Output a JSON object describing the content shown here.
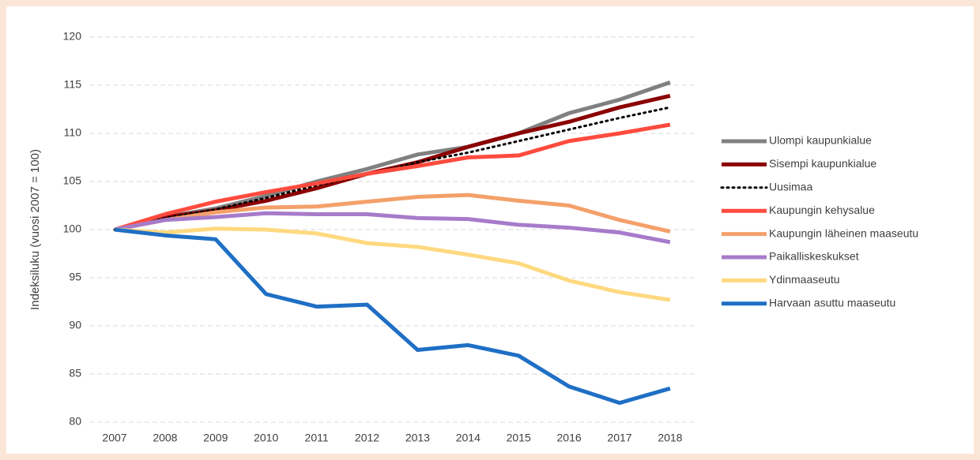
{
  "chart_data": {
    "type": "line",
    "y_label": "Indeksiluku (vuosi 2007 = 100)",
    "categories": [
      "2007",
      "2008",
      "2009",
      "2010",
      "2011",
      "2012",
      "2013",
      "2014",
      "2015",
      "2016",
      "2017",
      "2018"
    ],
    "ylim": [
      80,
      120
    ],
    "yticks": [
      80,
      85,
      90,
      95,
      100,
      105,
      110,
      115,
      120
    ],
    "grid": true,
    "legend": "right",
    "series": [
      {
        "name": "Ulompi kaupunkialue",
        "color": "#808080",
        "style": "solid",
        "values": [
          100,
          101.3,
          102.2,
          103.5,
          105,
          106.3,
          107.8,
          108.6,
          110,
          112.1,
          113.5,
          115.3
        ]
      },
      {
        "name": "Sisempi kaupunkialue",
        "color": "#8b0000",
        "style": "solid",
        "values": [
          100,
          101.3,
          102.0,
          103.0,
          104.3,
          105.8,
          107.0,
          108.6,
          110.0,
          111.2,
          112.7,
          113.9
        ]
      },
      {
        "name": "Uusimaa",
        "color": "#000000",
        "style": "dotted",
        "values": [
          100,
          101.2,
          102.1,
          103.3,
          104.6,
          105.7,
          107.0,
          108.0,
          109.2,
          110.4,
          111.6,
          112.7
        ]
      },
      {
        "name": "Kaupungin kehysalue",
        "color": "#ff4b3e",
        "style": "solid",
        "values": [
          100,
          101.6,
          102.9,
          103.9,
          104.8,
          105.8,
          106.6,
          107.5,
          107.7,
          109.2,
          110.0,
          110.9
        ]
      },
      {
        "name": "Kaupungin läheinen maaseutu",
        "color": "#f4a06a",
        "style": "solid",
        "values": [
          100,
          101.0,
          101.8,
          102.3,
          102.4,
          102.9,
          103.4,
          103.6,
          103.0,
          102.5,
          101.0,
          99.8
        ]
      },
      {
        "name": "Paikalliskeskukset",
        "color": "#a77bca",
        "style": "solid",
        "values": [
          100,
          101.0,
          101.3,
          101.7,
          101.6,
          101.6,
          101.2,
          101.1,
          100.5,
          100.2,
          99.7,
          98.7
        ]
      },
      {
        "name": "Ydinmaaseutu",
        "color": "#ffd980",
        "style": "solid",
        "values": [
          100,
          99.7,
          100.1,
          100.0,
          99.6,
          98.6,
          98.2,
          97.4,
          96.5,
          94.7,
          93.5,
          92.7
        ]
      },
      {
        "name": "Harvaan asuttu maaseutu",
        "color": "#1f6fc5",
        "style": "solid",
        "values": [
          100,
          99.4,
          99.0,
          93.3,
          92.0,
          92.2,
          87.5,
          88.0,
          86.9,
          83.7,
          82.0,
          83.5
        ]
      }
    ]
  }
}
